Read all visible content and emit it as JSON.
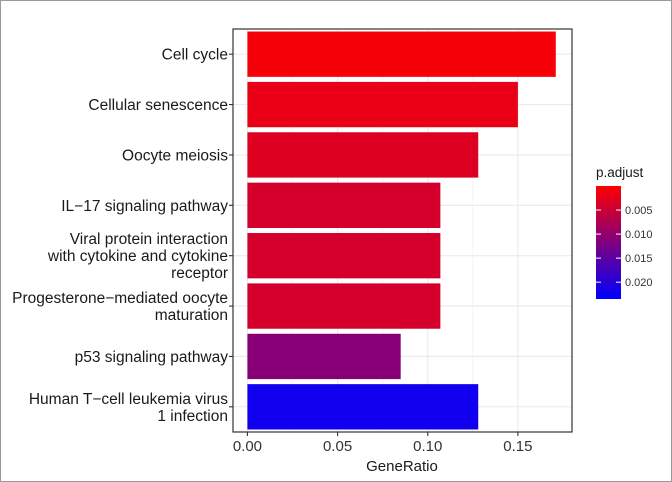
{
  "chart_data": {
    "type": "bar",
    "orientation": "horizontal",
    "categories": [
      "Cell cycle",
      "Cellular senescence",
      "Oocyte meiosis",
      "IL−17 signaling pathway",
      "Viral protein interaction with cytokine and cytokine receptor",
      "Progesterone−mediated oocyte maturation",
      "p53 signaling pathway",
      "Human T−cell leukemia virus 1 infection"
    ],
    "category_lines": [
      [
        "Cell cycle"
      ],
      [
        "Cellular senescence"
      ],
      [
        "Oocyte meiosis"
      ],
      [
        "IL−17 signaling pathway"
      ],
      [
        "Viral protein interaction",
        "with cytokine and cytokine",
        "receptor"
      ],
      [
        "Progesterone−mediated oocyte",
        "maturation"
      ],
      [
        "p53 signaling pathway"
      ],
      [
        "Human T−cell leukemia virus",
        "1 infection"
      ]
    ],
    "values": [
      0.171,
      0.15,
      0.128,
      0.107,
      0.107,
      0.107,
      0.085,
      0.128
    ],
    "p_adjust": [
      0.0008,
      0.002,
      0.003,
      0.004,
      0.004,
      0.004,
      0.011,
      0.022
    ],
    "xlabel": "GeneRatio",
    "ylabel": "",
    "xlim": [
      -0.008,
      0.18
    ],
    "xticks": [
      0.0,
      0.05,
      0.1,
      0.15
    ],
    "xtick_labels": [
      "0.00",
      "0.05",
      "0.10",
      "0.15"
    ],
    "grid": true,
    "legend": {
      "title": "p.adjust",
      "placement": "right",
      "ticks": [
        0.005,
        0.01,
        0.015,
        0.02
      ],
      "tick_labels": [
        "0.005",
        "0.010",
        "0.015",
        "0.020"
      ],
      "range": [
        0.0,
        0.0235
      ],
      "colors": {
        "low": "#FF0000",
        "high": "#0000FF"
      }
    }
  }
}
